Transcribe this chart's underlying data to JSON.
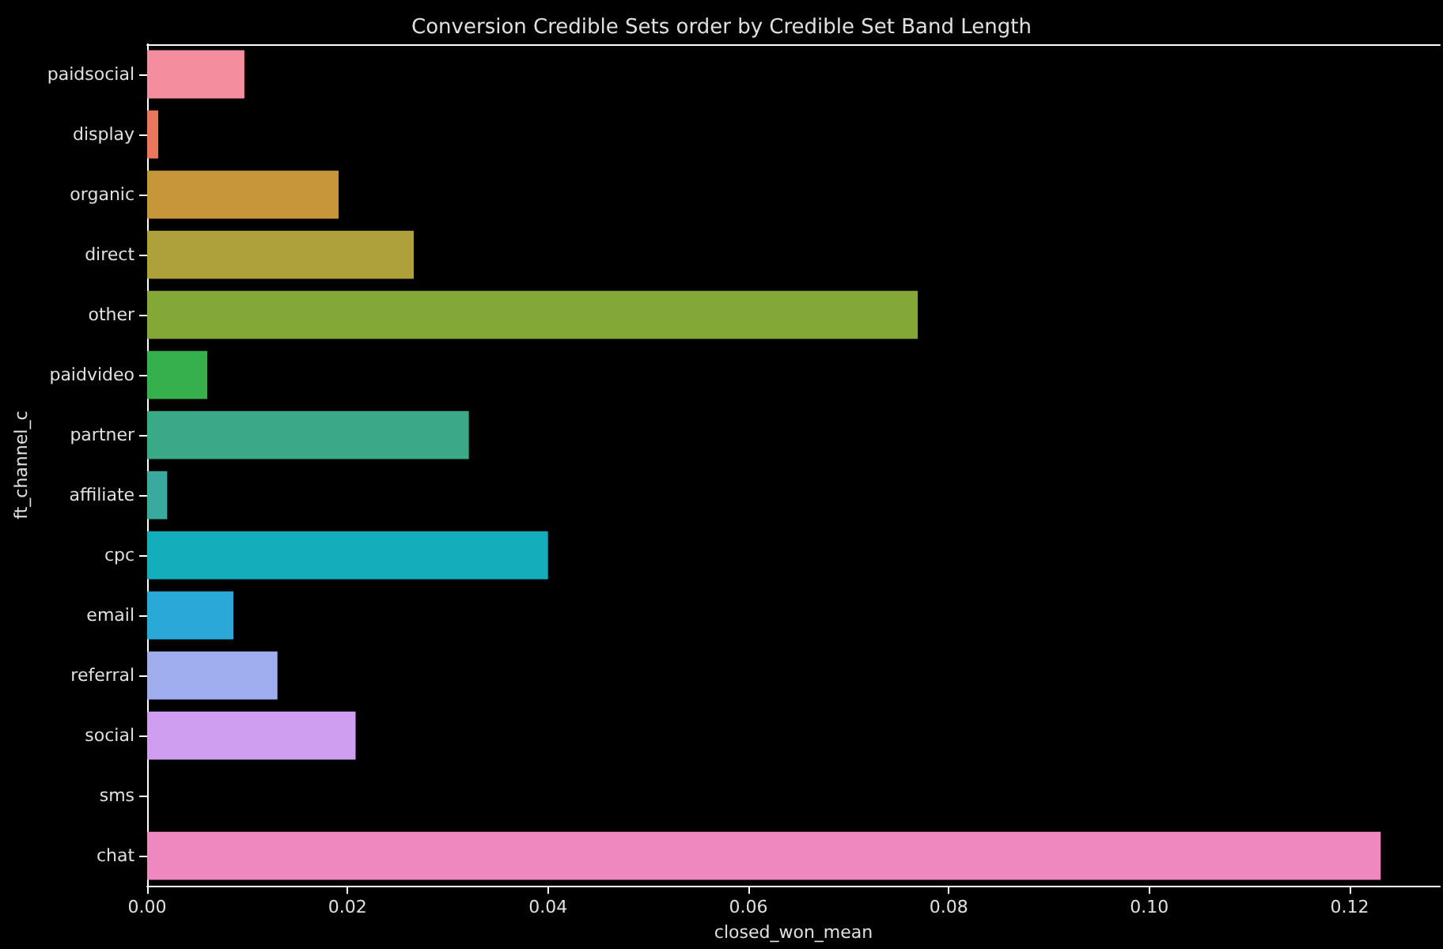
{
  "chart_data": {
    "type": "bar",
    "orientation": "horizontal",
    "title": "Conversion Credible Sets order by Credible Set Band Length",
    "xlabel": "closed_won_mean",
    "ylabel": "ft_channel_c",
    "categories": [
      "paidsocial",
      "display",
      "organic",
      "direct",
      "other",
      "paidvideo",
      "partner",
      "affiliate",
      "cpc",
      "email",
      "referral",
      "social",
      "sms",
      "chat"
    ],
    "values": [
      0.0097,
      0.0011,
      0.0191,
      0.0266,
      0.0769,
      0.006,
      0.0321,
      0.002,
      0.04,
      0.0086,
      0.013,
      0.0208,
      0,
      0.1231
    ],
    "colors": [
      "#f48e9e",
      "#e8785a",
      "#c8963a",
      "#aea03a",
      "#84a838",
      "#36b04c",
      "#3ba888",
      "#3aaa9e",
      "#14adbb",
      "#2aa8d8",
      "#a0aef0",
      "#d09ef0",
      "#e292d8",
      "#f088c0"
    ],
    "xlim": [
      0,
      0.129
    ],
    "xticks": [
      {
        "value": 0,
        "label": "0.00"
      },
      {
        "value": 0.02,
        "label": "0.02"
      },
      {
        "value": 0.04,
        "label": "0.04"
      },
      {
        "value": 0.06,
        "label": "0.06"
      },
      {
        "value": 0.08,
        "label": "0.08"
      },
      {
        "value": 0.1,
        "label": "0.10"
      },
      {
        "value": 0.12,
        "label": "0.12"
      }
    ],
    "grid": false
  }
}
